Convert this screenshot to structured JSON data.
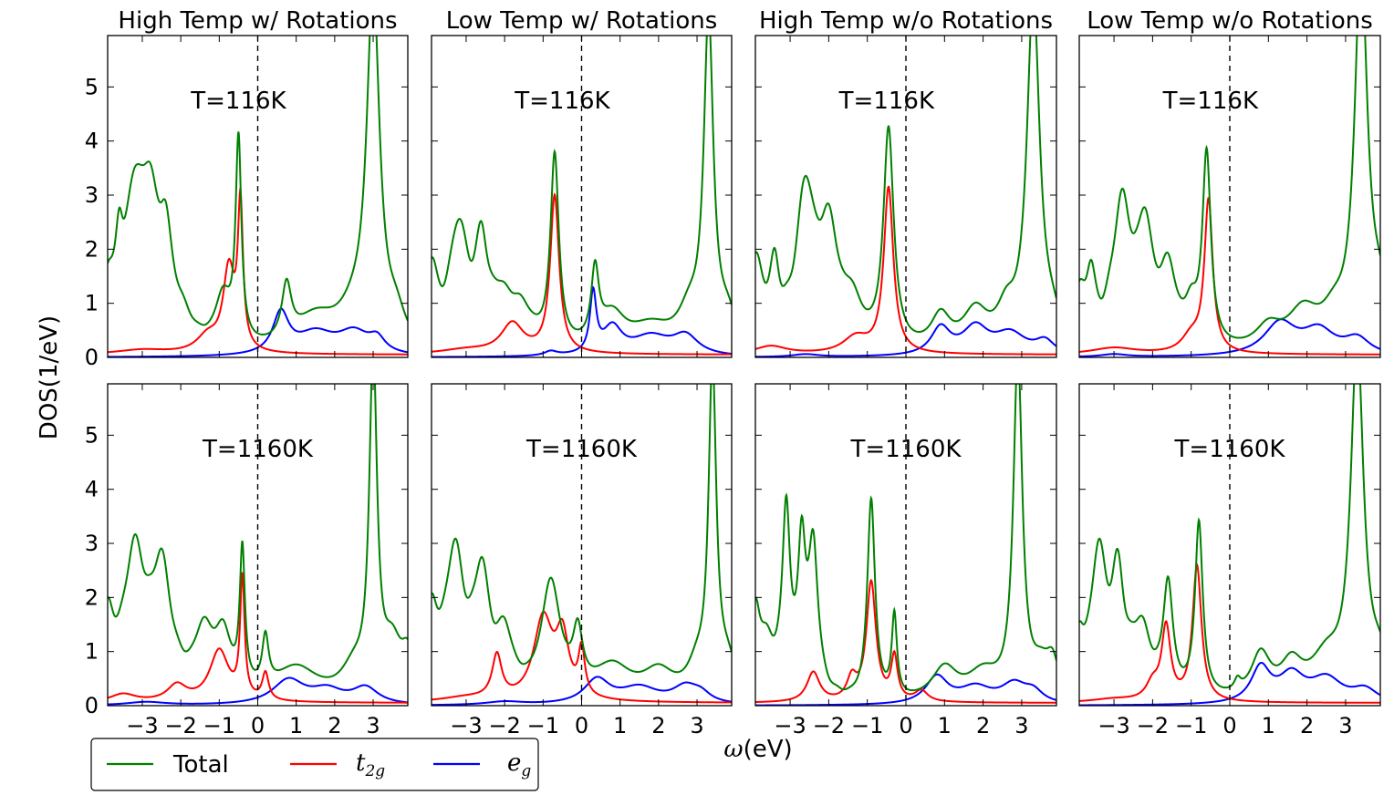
{
  "figure": {
    "ylabel": "DOS(1/eV)",
    "xlabel": "ω(eV)",
    "xlabel_symbol": "ω",
    "xlabel_unit": "(eV)",
    "legend": {
      "placement": "bottom-left, below plots",
      "entries": [
        {
          "key": "total",
          "label": "Total",
          "color": "#008000"
        },
        {
          "key": "t2g",
          "label_base": "t",
          "label_sub": "2g",
          "color": "#ff0000"
        },
        {
          "key": "eg",
          "label_base": "e",
          "label_sub": "g",
          "color": "#0000ff"
        }
      ]
    },
    "columns": [
      "High Temp w/ Rotations",
      "Low Temp w/ Rotations",
      "High Temp w/o Rotations",
      "Low Temp w/o Rotations"
    ],
    "row_labels": [
      "T=116K",
      "T=1160K"
    ],
    "xlim": [
      -3.9,
      3.9
    ],
    "ylim": [
      0,
      5.95
    ],
    "xticks": [
      -3,
      -2,
      -1,
      0,
      1,
      2,
      3
    ],
    "xtick_labels": [
      "−3",
      "−2",
      "−1",
      "0",
      "1",
      "2",
      "3"
    ],
    "yticks": [
      0,
      1,
      2,
      3,
      4,
      5
    ],
    "ytick_labels": [
      "0",
      "1",
      "2",
      "3",
      "4",
      "5"
    ],
    "fermi_line_x": 0
  },
  "chart_data": [
    {
      "type": "line",
      "title": "High Temp w/ Rotations",
      "annotation": "T=116K",
      "series": [
        {
          "name": "Total",
          "peaks": [
            [
              -3.9,
              1.0,
              0.18
            ],
            [
              -3.6,
              1.3,
              0.12
            ],
            [
              -3.2,
              2.6,
              0.3
            ],
            [
              -2.8,
              2.2,
              0.25
            ],
            [
              -2.4,
              1.7,
              0.2
            ],
            [
              -2.0,
              0.45,
              0.35
            ],
            [
              -0.9,
              0.9,
              0.25
            ],
            [
              -0.5,
              3.7,
              0.09
            ],
            [
              0.75,
              1.0,
              0.15
            ],
            [
              1.5,
              0.6,
              0.7
            ],
            [
              2.5,
              0.5,
              0.5
            ],
            [
              3.0,
              6.5,
              0.2
            ],
            [
              3.6,
              0.5,
              0.3
            ]
          ]
        },
        {
          "name": "t2g",
          "base": 0.05,
          "peaks": [
            [
              -3.0,
              0.08,
              0.8
            ],
            [
              -1.3,
              0.3,
              0.35
            ],
            [
              -0.75,
              1.5,
              0.18
            ],
            [
              -0.45,
              2.6,
              0.08
            ]
          ]
        },
        {
          "name": "eg",
          "base": 0,
          "peaks": [
            [
              0.6,
              0.75,
              0.25
            ],
            [
              1.5,
              0.4,
              0.6
            ],
            [
              2.5,
              0.4,
              0.5
            ],
            [
              3.1,
              0.25,
              0.25
            ]
          ]
        }
      ]
    },
    {
      "type": "line",
      "title": "Low Temp w/ Rotations",
      "annotation": "T=116K",
      "series": [
        {
          "name": "Total",
          "peaks": [
            [
              -3.9,
              1.4,
              0.2
            ],
            [
              -3.2,
              2.2,
              0.3
            ],
            [
              -2.6,
              1.7,
              0.2
            ],
            [
              -2.1,
              0.7,
              0.3
            ],
            [
              -1.6,
              0.7,
              0.4
            ],
            [
              -0.7,
              3.5,
              0.13
            ],
            [
              0.35,
              1.3,
              0.12
            ],
            [
              0.8,
              0.6,
              0.4
            ],
            [
              1.8,
              0.45,
              0.7
            ],
            [
              2.8,
              0.6,
              0.35
            ],
            [
              3.3,
              6.0,
              0.15
            ],
            [
              3.8,
              0.55,
              0.3
            ]
          ]
        },
        {
          "name": "t2g",
          "base": 0.05,
          "peaks": [
            [
              -3.0,
              0.08,
              0.8
            ],
            [
              -1.8,
              0.55,
              0.35
            ],
            [
              -0.7,
              2.9,
              0.14
            ]
          ]
        },
        {
          "name": "eg",
          "base": 0,
          "peaks": [
            [
              -0.8,
              0.08,
              0.2
            ],
            [
              0.3,
              1.1,
              0.1
            ],
            [
              0.8,
              0.5,
              0.3
            ],
            [
              1.8,
              0.35,
              0.6
            ],
            [
              2.7,
              0.35,
              0.4
            ]
          ]
        }
      ]
    },
    {
      "type": "line",
      "title": "High Temp w/o Rotations",
      "annotation": "T=116K",
      "series": [
        {
          "name": "Total",
          "peaks": [
            [
              -3.9,
              1.6,
              0.25
            ],
            [
              -3.4,
              1.2,
              0.15
            ],
            [
              -2.6,
              2.8,
              0.3
            ],
            [
              -2.0,
              2.0,
              0.3
            ],
            [
              -1.4,
              0.7,
              0.3
            ],
            [
              -0.45,
              4.0,
              0.16
            ],
            [
              0.9,
              0.6,
              0.3
            ],
            [
              1.8,
              0.7,
              0.4
            ],
            [
              2.6,
              0.6,
              0.3
            ],
            [
              3.3,
              6.5,
              0.2
            ],
            [
              3.8,
              0.4,
              0.3
            ]
          ]
        },
        {
          "name": "t2g",
          "base": 0.05,
          "peaks": [
            [
              -3.5,
              0.15,
              0.5
            ],
            [
              -1.3,
              0.3,
              0.4
            ],
            [
              -0.45,
              3.05,
              0.15
            ]
          ]
        },
        {
          "name": "eg",
          "base": 0,
          "peaks": [
            [
              -2.6,
              0.05,
              0.4
            ],
            [
              0.9,
              0.5,
              0.3
            ],
            [
              1.8,
              0.5,
              0.4
            ],
            [
              2.7,
              0.4,
              0.5
            ],
            [
              3.6,
              0.25,
              0.3
            ]
          ]
        }
      ]
    },
    {
      "type": "line",
      "title": "Low Temp w/o Rotations",
      "annotation": "T=116K",
      "series": [
        {
          "name": "Total",
          "peaks": [
            [
              -3.9,
              0.9,
              0.2
            ],
            [
              -3.6,
              1.1,
              0.15
            ],
            [
              -2.8,
              2.6,
              0.3
            ],
            [
              -2.2,
              2.0,
              0.25
            ],
            [
              -1.6,
              1.3,
              0.25
            ],
            [
              -1.0,
              0.6,
              0.2
            ],
            [
              -0.6,
              3.5,
              0.13
            ],
            [
              1.0,
              0.4,
              0.4
            ],
            [
              1.9,
              0.7,
              0.5
            ],
            [
              2.7,
              0.5,
              0.4
            ],
            [
              3.4,
              7.0,
              0.2
            ],
            [
              3.9,
              0.8,
              0.3
            ]
          ]
        },
        {
          "name": "t2g",
          "base": 0.05,
          "peaks": [
            [
              -3.0,
              0.12,
              0.7
            ],
            [
              -1.0,
              0.3,
              0.3
            ],
            [
              -0.55,
              2.8,
              0.13
            ]
          ]
        },
        {
          "name": "eg",
          "base": 0,
          "peaks": [
            [
              -3.0,
              0.05,
              0.4
            ],
            [
              1.3,
              0.6,
              0.5
            ],
            [
              2.3,
              0.45,
              0.5
            ],
            [
              3.3,
              0.3,
              0.4
            ]
          ]
        }
      ]
    },
    {
      "type": "line",
      "title": "High Temp w/ Rotations",
      "annotation": "T=1160K",
      "series": [
        {
          "name": "Total",
          "peaks": [
            [
              -3.9,
              1.3,
              0.2
            ],
            [
              -3.2,
              2.6,
              0.35
            ],
            [
              -2.5,
              2.2,
              0.3
            ],
            [
              -1.4,
              1.1,
              0.3
            ],
            [
              -0.9,
              1.0,
              0.25
            ],
            [
              -0.4,
              2.5,
              0.08
            ],
            [
              0.2,
              0.9,
              0.1
            ],
            [
              1.0,
              0.6,
              0.7
            ],
            [
              2.5,
              0.5,
              0.4
            ],
            [
              3.0,
              6.2,
              0.12
            ],
            [
              3.5,
              0.9,
              0.3
            ],
            [
              3.9,
              0.7,
              0.2
            ]
          ]
        },
        {
          "name": "t2g",
          "base": 0.05,
          "peaks": [
            [
              -3.5,
              0.15,
              0.4
            ],
            [
              -2.1,
              0.3,
              0.3
            ],
            [
              -1.0,
              0.95,
              0.3
            ],
            [
              -0.4,
              2.2,
              0.07
            ],
            [
              0.2,
              0.5,
              0.1
            ]
          ]
        },
        {
          "name": "eg",
          "base": 0,
          "peaks": [
            [
              -2.9,
              0.06,
              0.6
            ],
            [
              0.8,
              0.45,
              0.5
            ],
            [
              1.8,
              0.25,
              0.5
            ],
            [
              2.8,
              0.3,
              0.4
            ]
          ]
        }
      ]
    },
    {
      "type": "line",
      "title": "Low Temp w/ Rotations",
      "annotation": "T=1160K",
      "series": [
        {
          "name": "Total",
          "peaks": [
            [
              -3.9,
              1.4,
              0.2
            ],
            [
              -3.3,
              2.6,
              0.3
            ],
            [
              -2.6,
              2.1,
              0.25
            ],
            [
              -2.0,
              1.0,
              0.25
            ],
            [
              -0.8,
              2.1,
              0.3
            ],
            [
              -0.1,
              1.0,
              0.15
            ],
            [
              0.8,
              0.6,
              0.6
            ],
            [
              2.0,
              0.5,
              0.5
            ],
            [
              3.0,
              0.5,
              0.3
            ],
            [
              3.4,
              6.0,
              0.12
            ],
            [
              3.8,
              0.6,
              0.3
            ]
          ]
        },
        {
          "name": "t2g",
          "base": 0.05,
          "peaks": [
            [
              -3.0,
              0.08,
              0.8
            ],
            [
              -2.2,
              0.8,
              0.15
            ],
            [
              -1.0,
              1.5,
              0.3
            ],
            [
              -0.5,
              1.1,
              0.2
            ],
            [
              0.0,
              0.85,
              0.1
            ]
          ]
        },
        {
          "name": "eg",
          "base": 0,
          "peaks": [
            [
              -2.0,
              0.06,
              0.6
            ],
            [
              0.4,
              0.45,
              0.4
            ],
            [
              1.5,
              0.3,
              0.6
            ],
            [
              2.7,
              0.3,
              0.4
            ],
            [
              3.1,
              0.15,
              0.3
            ]
          ]
        }
      ]
    },
    {
      "type": "line",
      "title": "High Temp w/o Rotations",
      "annotation": "T=1160K",
      "series": [
        {
          "name": "Total",
          "peaks": [
            [
              -3.9,
              1.4,
              0.15
            ],
            [
              -3.6,
              0.9,
              0.3
            ],
            [
              -3.1,
              3.3,
              0.12
            ],
            [
              -2.7,
              2.6,
              0.12
            ],
            [
              -2.4,
              2.7,
              0.15
            ],
            [
              -0.9,
              3.7,
              0.12
            ],
            [
              -0.3,
              1.5,
              0.08
            ],
            [
              1.0,
              0.6,
              0.4
            ],
            [
              2.0,
              0.5,
              0.5
            ],
            [
              2.9,
              6.3,
              0.14
            ],
            [
              3.5,
              0.5,
              0.3
            ],
            [
              3.8,
              0.6,
              0.2
            ]
          ]
        },
        {
          "name": "t2g",
          "base": 0.05,
          "peaks": [
            [
              -2.4,
              0.55,
              0.2
            ],
            [
              -1.4,
              0.4,
              0.15
            ],
            [
              -0.9,
              2.2,
              0.15
            ],
            [
              -0.3,
              0.8,
              0.1
            ],
            [
              0.4,
              0.2,
              0.2
            ]
          ]
        },
        {
          "name": "eg",
          "base": 0,
          "peaks": [
            [
              0.8,
              0.5,
              0.35
            ],
            [
              1.8,
              0.3,
              0.5
            ],
            [
              2.8,
              0.35,
              0.4
            ],
            [
              3.3,
              0.2,
              0.3
            ]
          ]
        }
      ]
    },
    {
      "type": "line",
      "title": "Low Temp w/o Rotations",
      "annotation": "T=1160K",
      "series": [
        {
          "name": "Total",
          "peaks": [
            [
              -3.9,
              0.9,
              0.15
            ],
            [
              -3.4,
              2.6,
              0.25
            ],
            [
              -2.9,
              2.0,
              0.2
            ],
            [
              -2.3,
              1.2,
              0.3
            ],
            [
              -1.6,
              2.0,
              0.15
            ],
            [
              -0.8,
              3.2,
              0.12
            ],
            [
              0.2,
              0.2,
              0.1
            ],
            [
              0.8,
              0.8,
              0.3
            ],
            [
              1.6,
              0.6,
              0.35
            ],
            [
              2.5,
              0.7,
              0.5
            ],
            [
              3.3,
              6.5,
              0.2
            ],
            [
              3.9,
              0.6,
              0.3
            ]
          ]
        },
        {
          "name": "t2g",
          "base": 0.05,
          "peaks": [
            [
              -3.0,
              0.06,
              0.7
            ],
            [
              -2.0,
              0.3,
              0.2
            ],
            [
              -1.65,
              1.35,
              0.14
            ],
            [
              -0.85,
              2.5,
              0.14
            ]
          ]
        },
        {
          "name": "eg",
          "base": 0,
          "peaks": [
            [
              0.8,
              0.65,
              0.3
            ],
            [
              1.6,
              0.5,
              0.4
            ],
            [
              2.5,
              0.45,
              0.5
            ],
            [
              3.5,
              0.25,
              0.4
            ]
          ]
        }
      ]
    }
  ]
}
